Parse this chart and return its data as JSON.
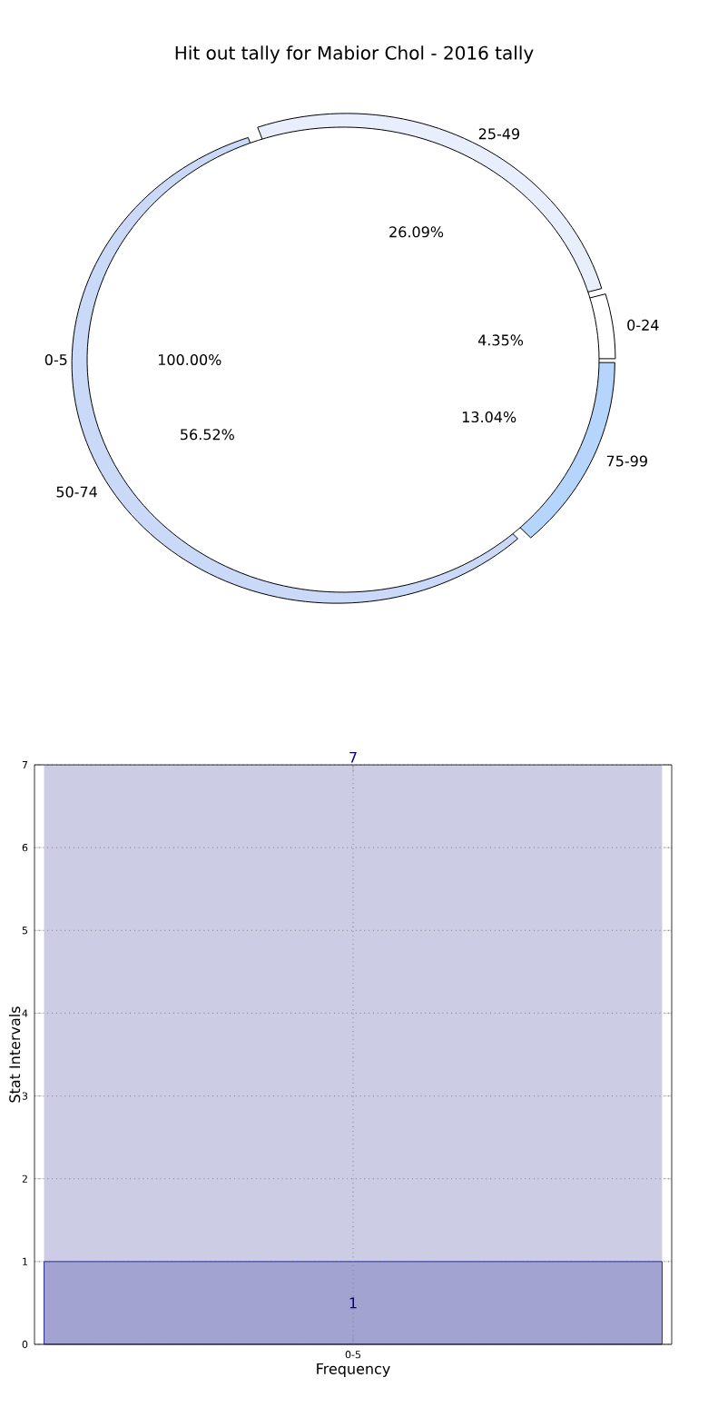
{
  "chart_data": [
    {
      "type": "donut",
      "title": "Hit out tally for Mabior Chol - 2016 tally",
      "categories": [
        "0-24",
        "25-49",
        "50-74",
        "75-99"
      ],
      "values": [
        4.35,
        26.09,
        56.52,
        13.04
      ],
      "value_labels": [
        "4.35%",
        "26.09%",
        "56.52%",
        "13.04%"
      ],
      "colors": [
        "#ffffff",
        "#e8eefc",
        "#c9d9f7",
        "#b5d5fc"
      ]
    },
    {
      "type": "pie",
      "categories": [
        "0-5"
      ],
      "values": [
        100
      ],
      "value_labels": [
        "100.00%"
      ],
      "colors": [
        "#ffffff"
      ]
    },
    {
      "type": "bar",
      "categories": [
        "0-5"
      ],
      "xlabel": "Frequency",
      "ylabel": "Stat Intervals",
      "series": [
        {
          "color": "#a3a3d1",
          "values": [
            1
          ],
          "value_labels": [
            "1"
          ]
        },
        {
          "color": "#cccce4",
          "values": [
            6
          ]
        }
      ],
      "stacked": true,
      "totals": [
        "7"
      ],
      "ylim": [
        0,
        7
      ],
      "yticks": [
        0,
        1,
        2,
        3,
        4,
        5,
        6,
        7
      ],
      "grid": true
    }
  ]
}
